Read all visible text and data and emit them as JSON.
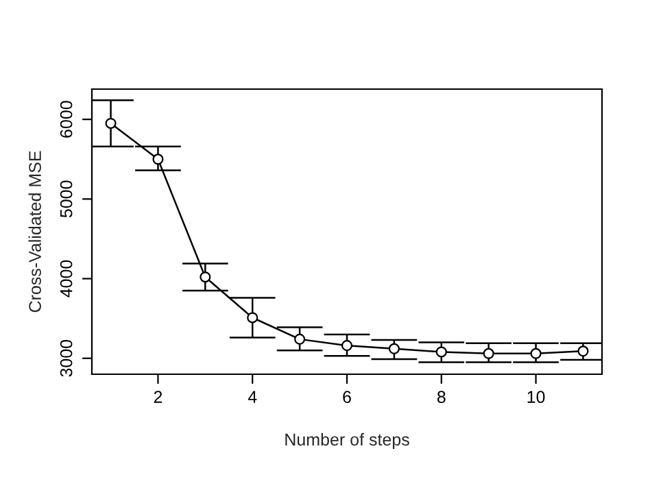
{
  "chart_data": {
    "type": "line",
    "xlabel": "Number of steps",
    "ylabel": "Cross-Validated MSE",
    "x": [
      1,
      2,
      3,
      4,
      5,
      6,
      7,
      8,
      9,
      10,
      11
    ],
    "values": [
      5950,
      5500,
      4020,
      3510,
      3240,
      3160,
      3120,
      3080,
      3060,
      3060,
      3090
    ],
    "errors": [
      [
        5660,
        6240
      ],
      [
        5360,
        5660
      ],
      [
        3850,
        4190
      ],
      [
        3260,
        3760
      ],
      [
        3100,
        3390
      ],
      [
        3030,
        3300
      ],
      [
        2990,
        3230
      ],
      [
        2950,
        3200
      ],
      [
        2950,
        3190
      ],
      [
        2950,
        3190
      ],
      [
        2980,
        3190
      ]
    ],
    "color": "#000000",
    "marker": "circle",
    "line_style": "solid",
    "xlim": [
      0.6,
      11.4
    ],
    "ylim": [
      2800,
      6380
    ],
    "xticks": [
      2,
      4,
      6,
      8,
      10
    ],
    "yticks": [
      3000,
      4000,
      5000,
      6000
    ],
    "grid": false,
    "legend": false
  }
}
